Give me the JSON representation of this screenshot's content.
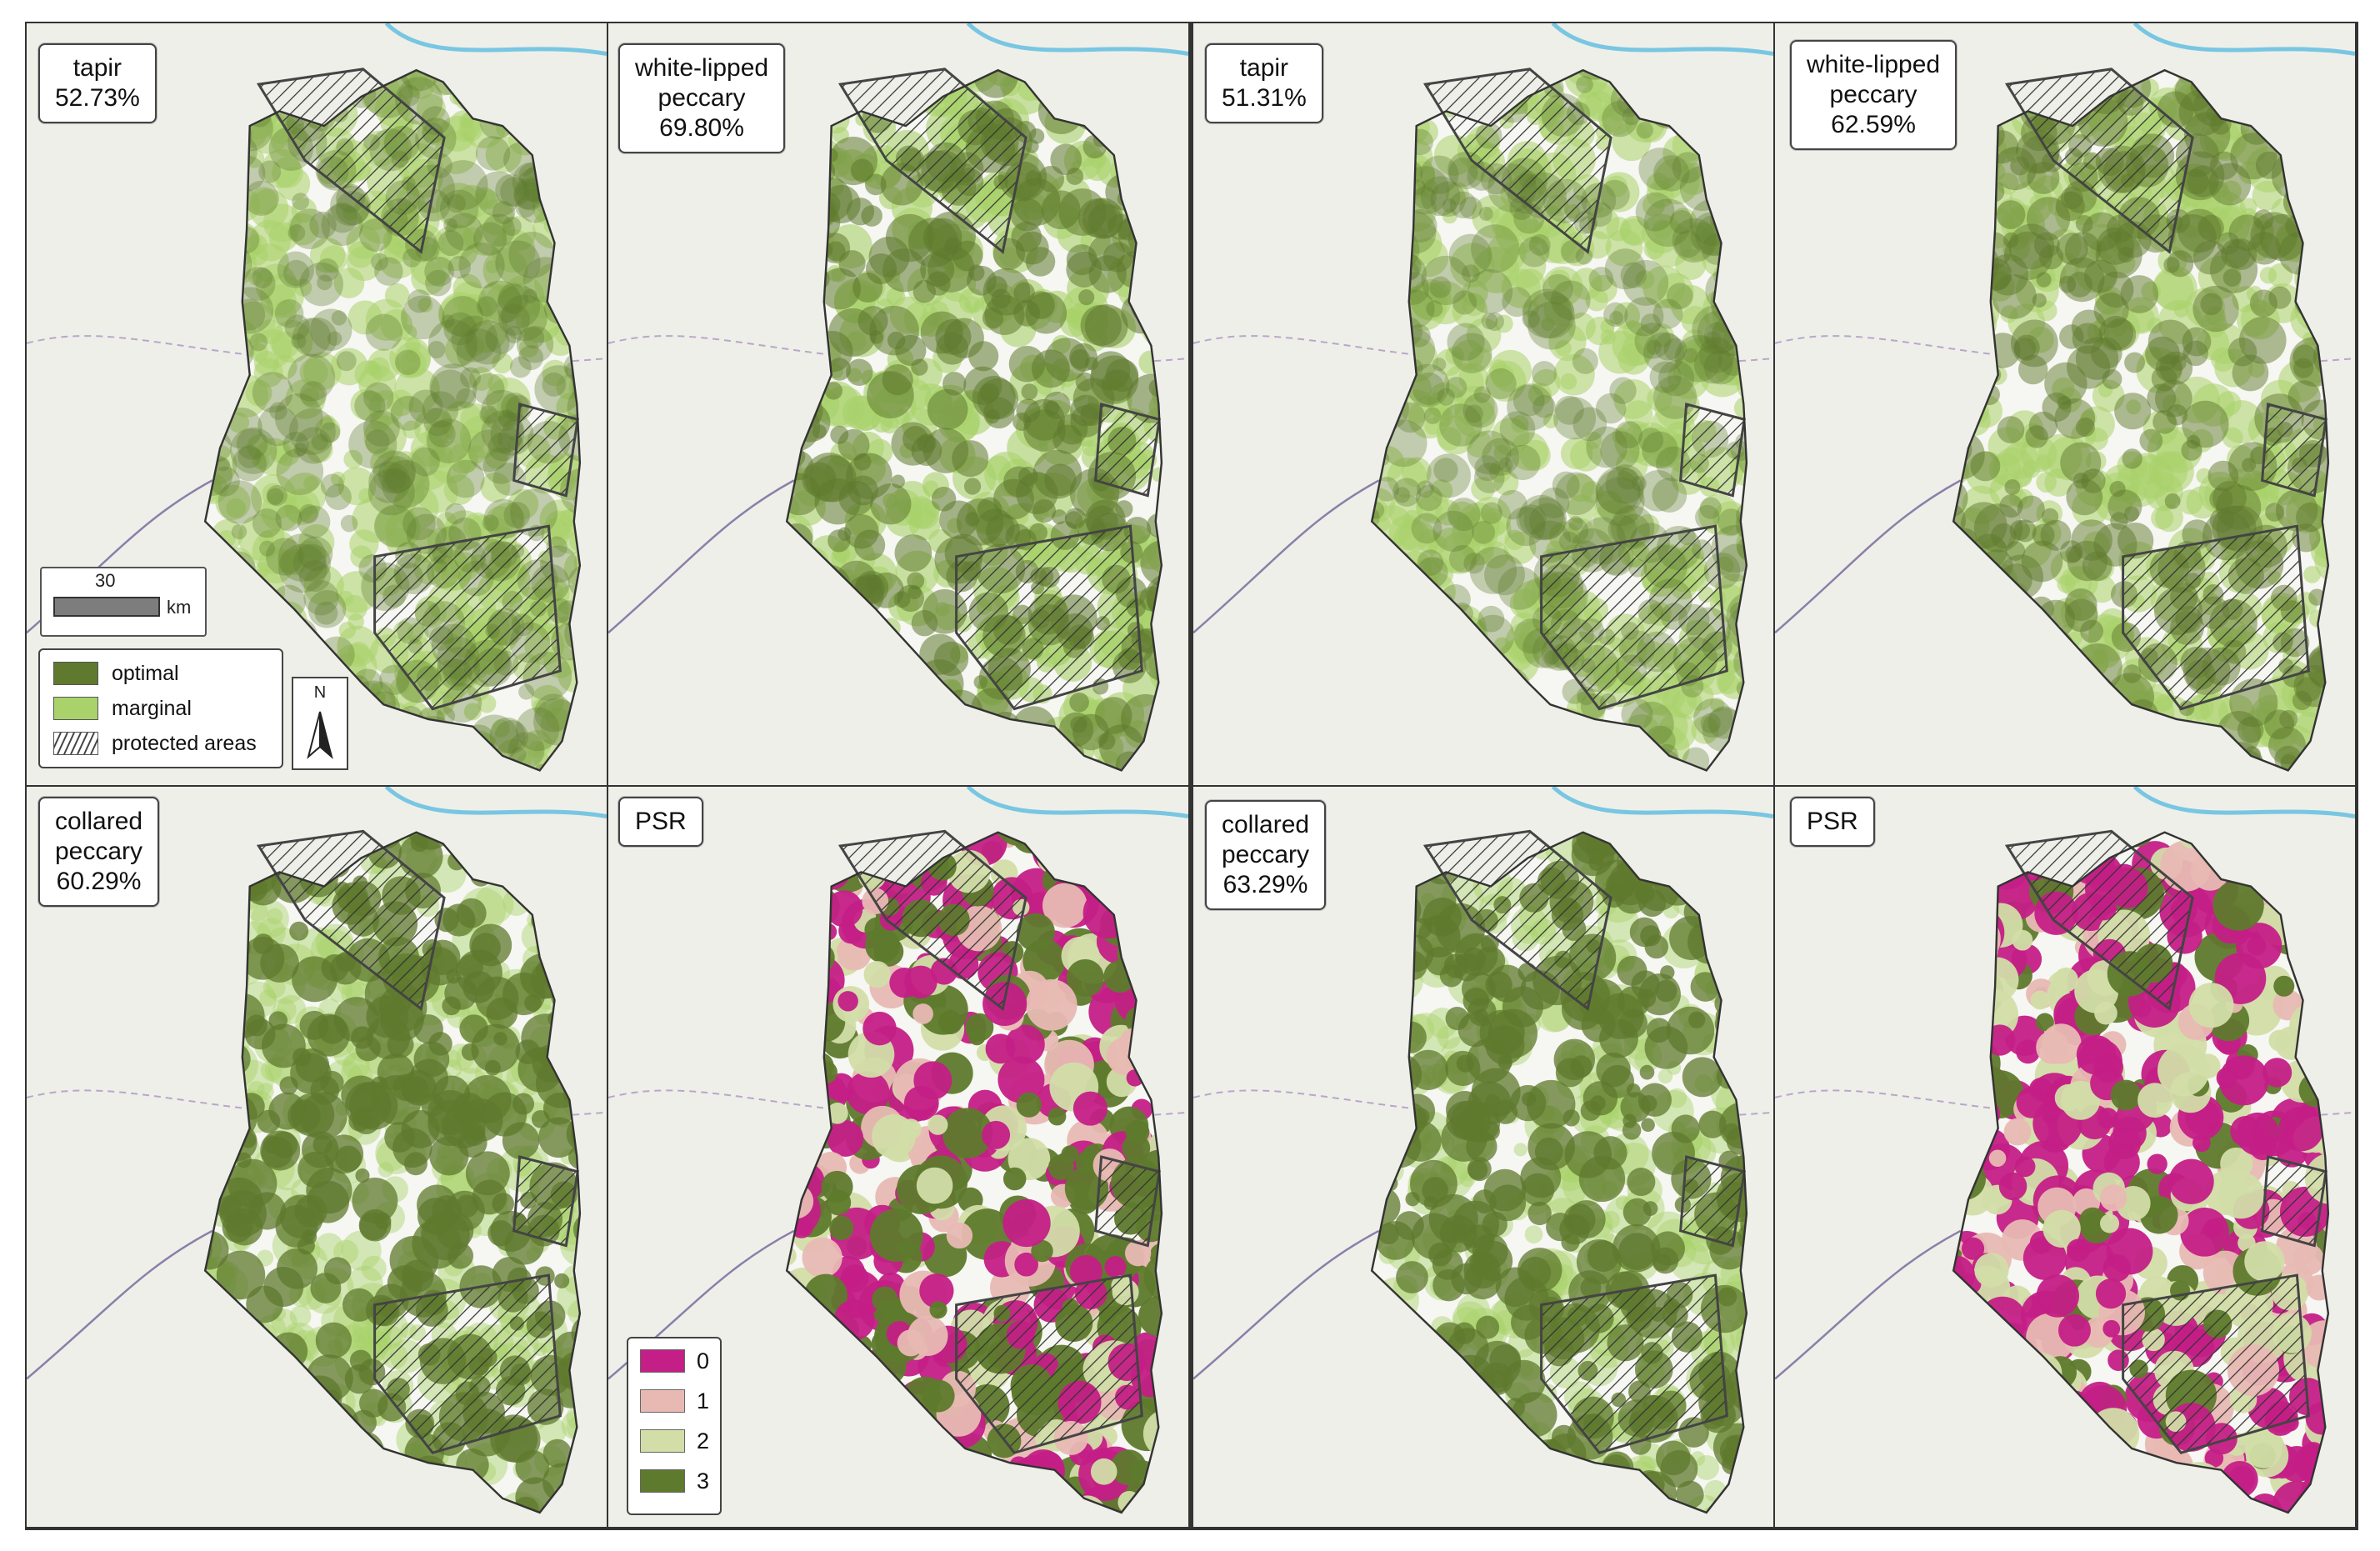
{
  "colors": {
    "optimal": "#5f7a2e",
    "marginal": "#a9d26a",
    "psr_0": "#c41f86",
    "psr_1": "#e8b9b3",
    "psr_2": "#d2dda8",
    "psr_3": "#5e7a2c",
    "boundary": "#333333",
    "basemap": "#eeefe9",
    "river": "#78c6e2"
  },
  "panels": [
    {
      "id": "A1",
      "lines": [
        "tapir",
        "52.73%"
      ]
    },
    {
      "id": "A2",
      "lines": [
        "white-lipped",
        "peccary",
        "69.80%"
      ]
    },
    {
      "id": "A3",
      "lines": [
        "collared",
        "peccary",
        "60.29%"
      ]
    },
    {
      "id": "A4",
      "lines": [
        "PSR"
      ]
    },
    {
      "id": "B1",
      "lines": [
        "tapir",
        "51.31%"
      ]
    },
    {
      "id": "B2",
      "lines": [
        "white-lipped",
        "peccary",
        "62.59%"
      ]
    },
    {
      "id": "B3",
      "lines": [
        "collared",
        "peccary",
        "63.29%"
      ]
    },
    {
      "id": "B4",
      "lines": [
        "PSR"
      ]
    }
  ],
  "scalebar": {
    "value": "30",
    "unit": "km"
  },
  "legend": {
    "items": [
      {
        "label": "optimal",
        "key": "optimal"
      },
      {
        "label": "marginal",
        "key": "marginal"
      },
      {
        "label": "protected areas",
        "key": "hatch"
      }
    ]
  },
  "north_arrow": {
    "label": "N",
    "icon": "north-arrow-icon"
  },
  "psr_legend": {
    "items": [
      {
        "label": "0",
        "key": "psr_0"
      },
      {
        "label": "1",
        "key": "psr_1"
      },
      {
        "label": "2",
        "key": "psr_2"
      },
      {
        "label": "3",
        "key": "psr_3"
      }
    ]
  },
  "map_content": {
    "A1": {
      "optimal": 0.35,
      "marginal": 0.55
    },
    "A2": {
      "optimal": 0.55,
      "marginal": 0.6
    },
    "A3": {
      "optimal": 0.75,
      "marginal": 0.45
    },
    "A4": {
      "psr": [
        0.3,
        0.15,
        0.2,
        0.35
      ]
    },
    "B1": {
      "optimal": 0.35,
      "marginal": 0.55
    },
    "B2": {
      "optimal": 0.5,
      "marginal": 0.55
    },
    "B3": {
      "optimal": 0.75,
      "marginal": 0.45
    },
    "B4": {
      "psr": [
        0.45,
        0.15,
        0.25,
        0.15
      ]
    }
  }
}
